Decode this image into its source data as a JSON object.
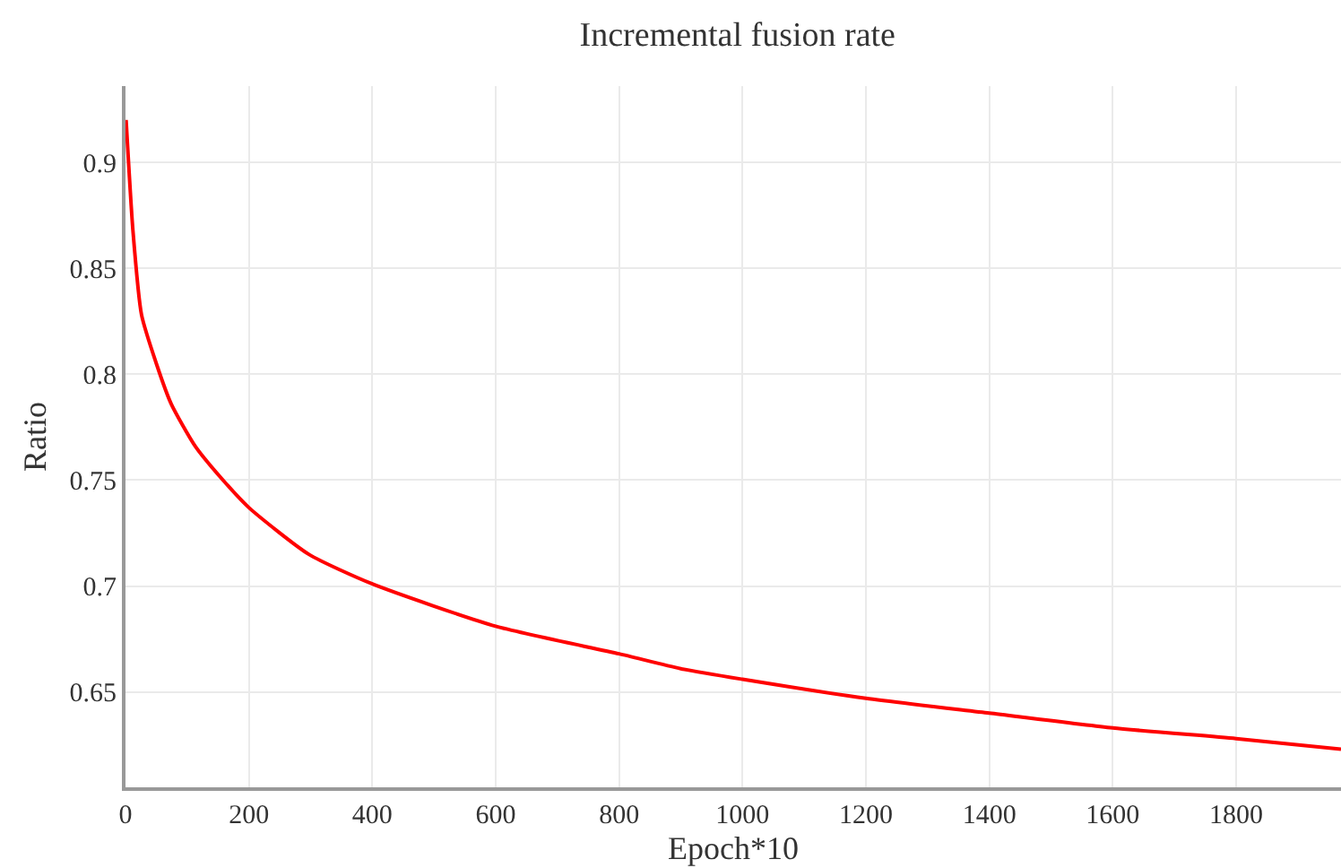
{
  "chart_data": {
    "type": "line",
    "title": "Incremental fusion rate",
    "xlabel": "Epoch*10",
    "ylabel": "Ratio",
    "xlim": [
      0,
      1970
    ],
    "ylim": [
      0.605,
      0.936
    ],
    "xticks": [
      0,
      200,
      400,
      600,
      800,
      1000,
      1200,
      1400,
      1600,
      1800
    ],
    "yticks": [
      0.65,
      0.7,
      0.75,
      0.8,
      0.85,
      0.9
    ],
    "grid": true,
    "marker": "none",
    "line_style": "solid",
    "series": [
      {
        "color": "#ff0000",
        "x": [
          1,
          12,
          26,
          50,
          74,
          113,
          161,
          200,
          297,
          400,
          600,
          800,
          900,
          1000,
          1200,
          1400,
          1600,
          1800,
          1970
        ],
        "values": [
          0.92,
          0.868,
          0.828,
          0.805,
          0.786,
          0.766,
          0.749,
          0.737,
          0.715,
          0.701,
          0.681,
          0.668,
          0.661,
          0.656,
          0.647,
          0.64,
          0.633,
          0.628,
          0.623
        ]
      }
    ]
  }
}
